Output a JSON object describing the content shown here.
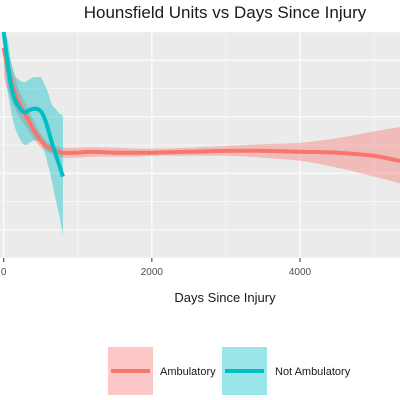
{
  "chart_data": {
    "type": "line",
    "title": "Hounsfield Units vs Days Since Injury",
    "xlabel": "Days Since Injury",
    "ylabel": "",
    "xlim": [
      -50,
      5350
    ],
    "ylim": [
      0,
      1
    ],
    "x_ticks": [
      0,
      2000,
      4000
    ],
    "x_tick_labels": [
      "0",
      "2000",
      "4000"
    ],
    "grid": true,
    "legend_position": "bottom",
    "series": [
      {
        "name": "Ambulatory",
        "color": "#f8766d",
        "x": [
          0,
          100,
          200,
          300,
          400,
          500,
          600,
          700,
          800,
          1000,
          1200,
          1500,
          1800,
          2000,
          2500,
          3000,
          3500,
          4000,
          4500,
          5000,
          5350
        ],
        "y": [
          0.93,
          0.78,
          0.69,
          0.63,
          0.57,
          0.52,
          0.49,
          0.474,
          0.466,
          0.466,
          0.47,
          0.466,
          0.466,
          0.466,
          0.47,
          0.474,
          0.474,
          0.47,
          0.466,
          0.452,
          0.429
        ],
        "lo": [
          0.8,
          0.7,
          0.63,
          0.58,
          0.53,
          0.49,
          0.47,
          0.452,
          0.444,
          0.444,
          0.448,
          0.448,
          0.448,
          0.452,
          0.452,
          0.452,
          0.444,
          0.43,
          0.4,
          0.36,
          0.33
        ],
        "hi": [
          1.0,
          0.86,
          0.75,
          0.68,
          0.61,
          0.55,
          0.51,
          0.496,
          0.488,
          0.488,
          0.49,
          0.488,
          0.484,
          0.484,
          0.488,
          0.496,
          0.504,
          0.51,
          0.53,
          0.56,
          0.58
        ]
      },
      {
        "name": "Not Ambulatory",
        "color": "#00bfc4",
        "x": [
          0,
          50,
          100,
          150,
          200,
          250,
          300,
          350,
          400,
          450,
          500,
          550,
          600,
          650,
          700,
          750,
          800
        ],
        "y": [
          1.0,
          0.87,
          0.76,
          0.7,
          0.67,
          0.65,
          0.645,
          0.655,
          0.66,
          0.66,
          0.65,
          0.62,
          0.57,
          0.51,
          0.46,
          0.41,
          0.36
        ],
        "lo": [
          0.88,
          0.75,
          0.65,
          0.58,
          0.54,
          0.51,
          0.5,
          0.51,
          0.52,
          0.52,
          0.51,
          0.47,
          0.41,
          0.34,
          0.26,
          0.19,
          0.1
        ],
        "hi": [
          1.0,
          0.97,
          0.87,
          0.81,
          0.79,
          0.78,
          0.78,
          0.79,
          0.8,
          0.8,
          0.8,
          0.77,
          0.73,
          0.68,
          0.66,
          0.64,
          0.63
        ]
      }
    ],
    "legend": [
      {
        "label": "Ambulatory",
        "color": "#f8766d"
      },
      {
        "label": "Not Ambulatory",
        "color": "#00bfc4"
      }
    ]
  }
}
